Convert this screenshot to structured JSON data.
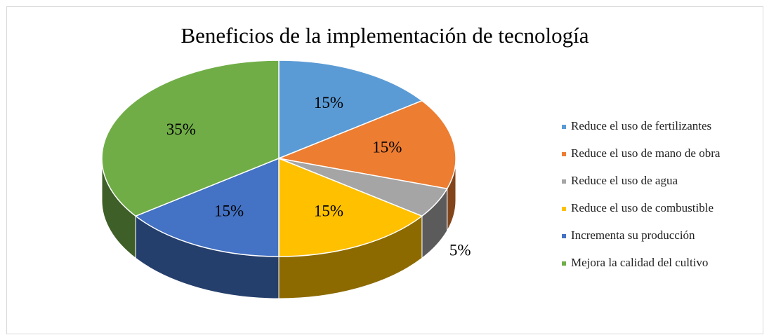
{
  "chart_data": {
    "type": "pie",
    "title": "Beneficios de la implementación de tecnología",
    "categories": [
      "Reduce el uso de fertilizantes",
      "Reduce el uso de mano de obra",
      "Reduce el uso de agua",
      "Reduce el uso de combustible",
      "Incrementa su producción",
      "Mejora la calidad del cultivo"
    ],
    "values": [
      15,
      15,
      5,
      15,
      15,
      35
    ],
    "value_labels": [
      "15%",
      "15%",
      "5%",
      "15%",
      "15%",
      "35%"
    ],
    "colors": [
      "#5b9bd5",
      "#ed7d31",
      "#a5a5a5",
      "#ffc000",
      "#4472c4",
      "#70ad47"
    ],
    "legend": "right"
  }
}
